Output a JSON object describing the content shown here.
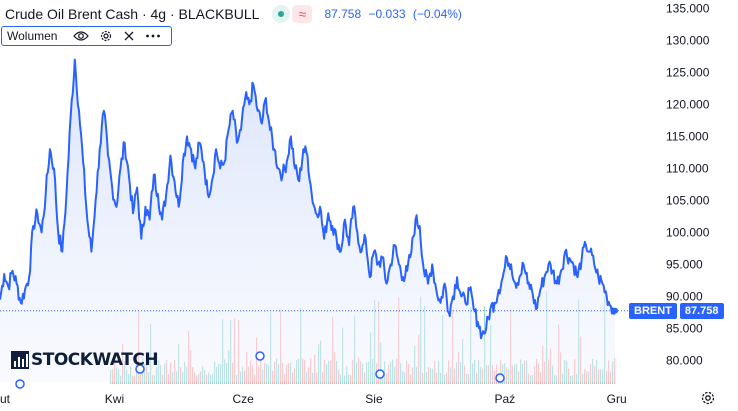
{
  "legend": {
    "title": "Crude Oil Brent Cash · 4g · BLACKBULL",
    "last": "87.758",
    "change": "−0.033",
    "change_pct": "(−0.04%)"
  },
  "volume_indicator": {
    "label": "Wolumen",
    "icons": [
      "eye-icon",
      "gear-icon",
      "close-icon",
      "more-icon"
    ]
  },
  "price_axis": {
    "ticks": [
      "135.000",
      "130.000",
      "125.000",
      "120.000",
      "115.000",
      "110.000",
      "105.000",
      "100.000",
      "95.000",
      "90.000",
      "85.000",
      "80.000"
    ],
    "tick_values": [
      135,
      130,
      125,
      120,
      115,
      110,
      105,
      100,
      95,
      90,
      85,
      80
    ]
  },
  "time_axis": {
    "labels": [
      "ut",
      "Kwi",
      "Cze",
      "Sie",
      "Paź",
      "Gru"
    ],
    "label_fracs": [
      0.0,
      0.142,
      0.315,
      0.495,
      0.67,
      0.822
    ]
  },
  "price_tag": {
    "symbol": "BRENT",
    "price": "87.758"
  },
  "watermark": {
    "text": "STOCKWATCH"
  },
  "colors": {
    "line": "#2962ff",
    "area_top": "#d8e2fb",
    "vol_up": "#26a69a",
    "vol_down": "#ef5350"
  },
  "chart_data": {
    "type": "area",
    "title": "Crude Oil Brent Cash · 4g · BLACKBULL",
    "xlabel": "",
    "ylabel": "",
    "ylim": [
      78.5,
      136
    ],
    "x_labels": [
      "Kwi",
      "Cze",
      "Sie",
      "Paź",
      "Gru"
    ],
    "series": [
      {
        "values": [
          89.5,
          93.5,
          91.5,
          94,
          92,
          89,
          91,
          93,
          101,
          103,
          100,
          106,
          113,
          110,
          100,
          97,
          106,
          118,
          127,
          119,
          111,
          102,
          97,
          105,
          113,
          119,
          112,
          107,
          104,
          110,
          114,
          109,
          103,
          107,
          99,
          104,
          102,
          109,
          106,
          102,
          106,
          112,
          108,
          104,
          111,
          115,
          113,
          110,
          114,
          111,
          106,
          108,
          113,
          110,
          111,
          116,
          119,
          114,
          116,
          121,
          120,
          123,
          119,
          117,
          121,
          116,
          113,
          110,
          109,
          111,
          115,
          110,
          108,
          113,
          112,
          106,
          103,
          104,
          99,
          103,
          101,
          99,
          97,
          102,
          98,
          104,
          100,
          97,
          99,
          93,
          97,
          95,
          96,
          92,
          95,
          98,
          95,
          93,
          94,
          97,
          102,
          101,
          94,
          92,
          95,
          91,
          89,
          92,
          87.5,
          90,
          93,
          90,
          89,
          91,
          88,
          86,
          84,
          85,
          88,
          89,
          91,
          93,
          96,
          95,
          92,
          93,
          95,
          92,
          91,
          88,
          91,
          93,
          95,
          94,
          92,
          94,
          97,
          96,
          95,
          93,
          96,
          98,
          97,
          95,
          93,
          92,
          90,
          88.5,
          87.7
        ]
      }
    ],
    "last_value": 87.758,
    "change": -0.033,
    "change_pct": -0.04
  }
}
